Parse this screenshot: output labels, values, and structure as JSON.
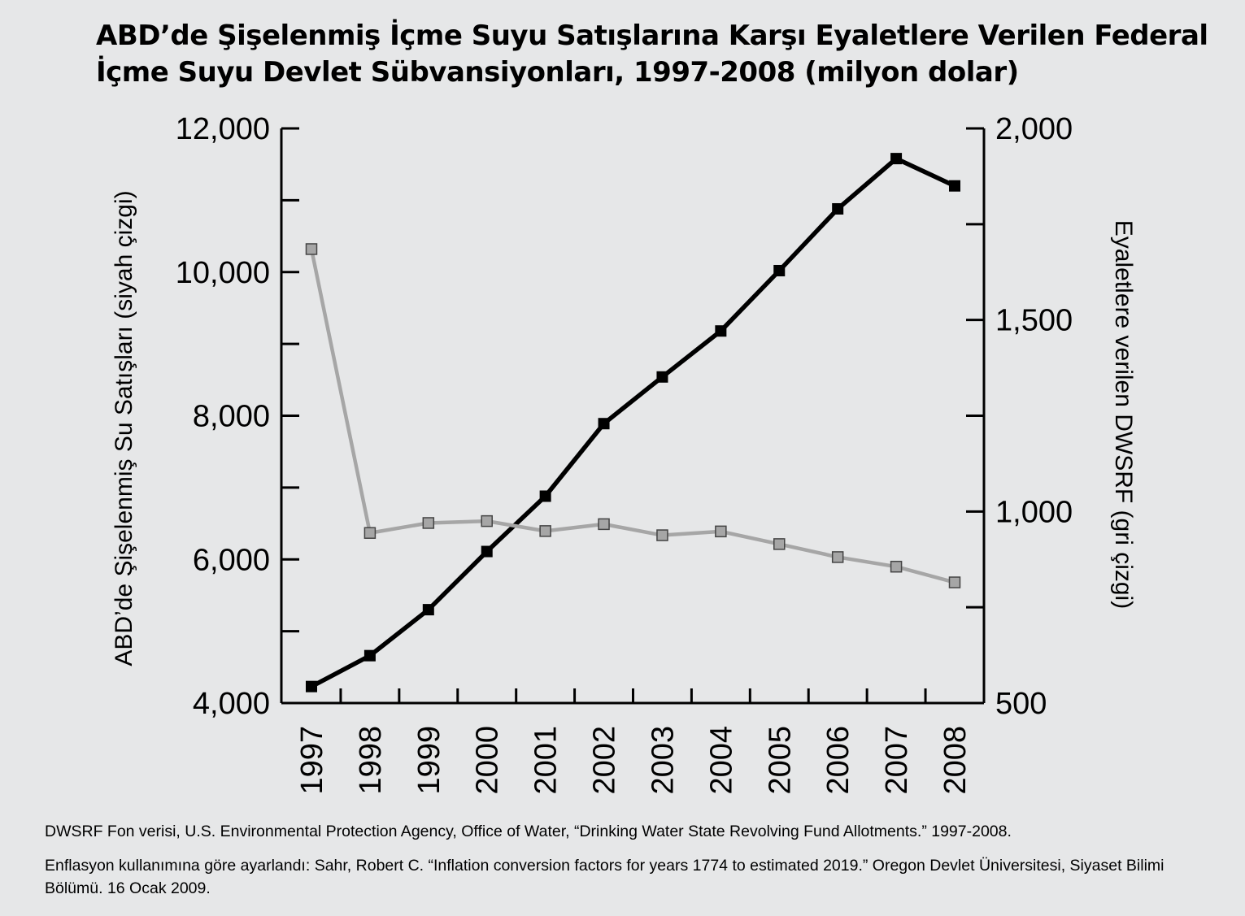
{
  "title": {
    "line1": "ABD’de Şişelenmiş İçme Suyu Satışlarına Karşı Eyaletlere Verilen Federal",
    "line2": "İçme Suyu Devlet Sübvansiyonları, 1997-2008 (milyon dolar)"
  },
  "chart_data": {
    "type": "line",
    "title": "ABD’de Şişelenmiş İçme Suyu Satışlarına Karşı Eyaletlere Verilen Federal İçme Suyu Devlet Sübvansiyonları, 1997-2008 (milyon dolar)",
    "categories": [
      "1997",
      "1998",
      "1999",
      "2000",
      "2001",
      "2002",
      "2003",
      "2004",
      "2005",
      "2006",
      "2007",
      "2008"
    ],
    "ylabel": "ABD’de Şişelenmiş Su Satışları (siyah çizgi)",
    "ylabel_right": "Eyaletlere verilen DWSRF (gri çizgi)",
    "ylim": [
      4000,
      12000
    ],
    "ylim_right": [
      500,
      2000
    ],
    "yticks": [
      "4,000",
      "6,000",
      "8,000",
      "10,000",
      "12,000"
    ],
    "yticks_right": [
      "500",
      "1,000",
      "1,500",
      "2,000"
    ],
    "series": [
      {
        "axis": "left",
        "color": "#000000",
        "values": [
          4230,
          4660,
          5300,
          6110,
          6880,
          7890,
          8540,
          9180,
          10020,
          10880,
          11580,
          11200
        ]
      },
      {
        "axis": "right",
        "color": "#a6a6a6",
        "values": [
          1685,
          944,
          970,
          975,
          949,
          967,
          938,
          948,
          915,
          881,
          856,
          815
        ]
      }
    ]
  },
  "sources": {
    "line1": "DWSRF Fon verisi, U.S. Environmental Protection Agency, Office of Water, “Drinking Water State Revolving Fund Allotments.” 1997-2008.",
    "line2": "Enflasyon kullanımına göre ayarlandı: Sahr, Robert C. “Inflation conversion factors for years 1774 to estimated 2019.” Oregon Devlet Üniversitesi, Siyaset Bilimi Bölümü. 16 Ocak 2009."
  }
}
